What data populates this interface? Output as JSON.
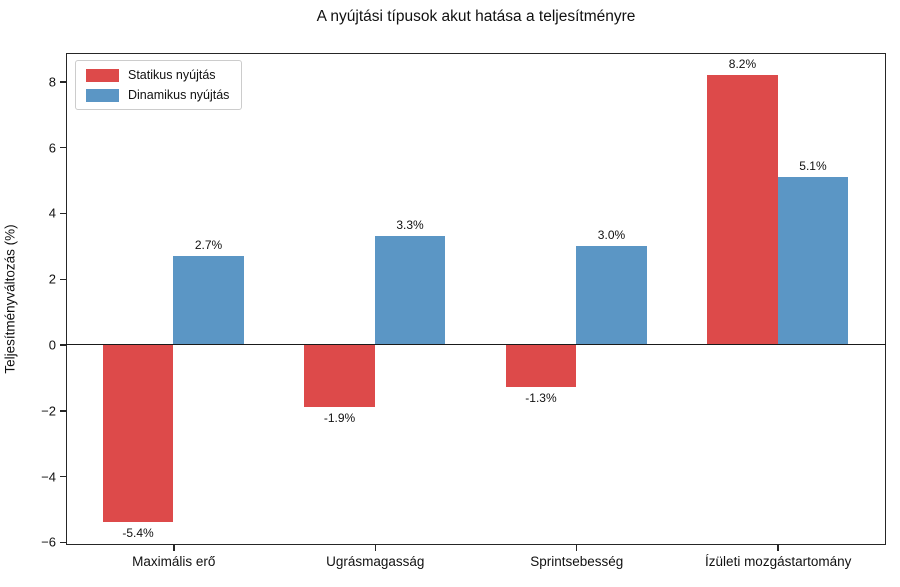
{
  "chart_data": {
    "type": "bar",
    "title": "A nyújtási típusok akut hatása a teljesítményre",
    "xlabel": "",
    "ylabel": "Teljesítményváltozás (%)",
    "categories": [
      "Maximális erő",
      "Ugrásmagasság",
      "Sprintsebesség",
      "Ízületi mozgástartomány"
    ],
    "series": [
      {
        "name": "Statikus nyújtás",
        "color": "#DD4A4A",
        "values": [
          -5.4,
          -1.9,
          -1.3,
          8.2
        ],
        "labels": [
          "-5.4%",
          "-1.9%",
          "-1.3%",
          "8.2%"
        ]
      },
      {
        "name": "Dinamikus nyújtás",
        "color": "#5B96C5",
        "values": [
          2.7,
          3.3,
          3.0,
          5.1
        ],
        "labels": [
          "2.7%",
          "3.3%",
          "3.0%",
          "5.1%"
        ]
      }
    ],
    "ylim": [
      -6.08,
      8.88
    ],
    "xlim": [
      -0.535,
      3.535
    ],
    "yticks": [
      -6,
      -4,
      -2,
      0,
      2,
      4,
      6,
      8
    ],
    "ytick_labels": [
      "−6",
      "−4",
      "−2",
      "0",
      "2",
      "4",
      "6",
      "8"
    ],
    "bar_width": 0.35,
    "grid": false,
    "zero_line": true,
    "legend_position": "upper left",
    "axis_color": "#262626"
  }
}
